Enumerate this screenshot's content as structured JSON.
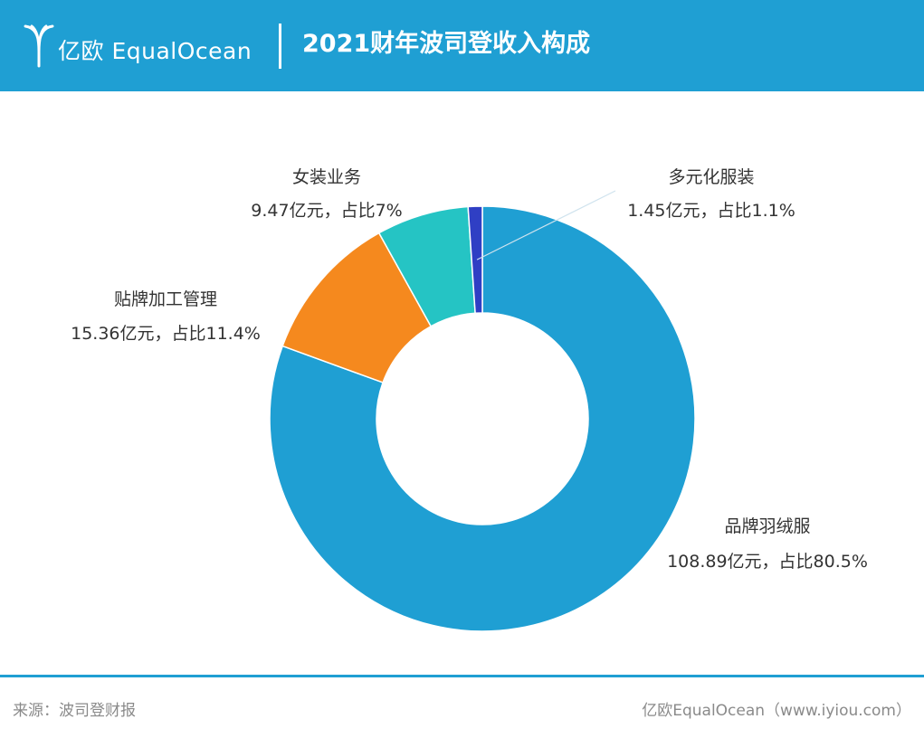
{
  "header": {
    "brand": "亿欧 EqualOcean",
    "title": "2021财年波司登收入构成",
    "accent_color": "#1f9fd3"
  },
  "chart_data": {
    "type": "pie",
    "title": "2021财年波司登收入构成",
    "unit": "亿元",
    "slices": [
      {
        "category": "品牌羽绒服",
        "value": 108.89,
        "percent": 80.5,
        "value_label": "108.89亿元，占比80.5%",
        "color": "#1f9fd3"
      },
      {
        "category": "贴牌加工管理",
        "value": 15.36,
        "percent": 11.4,
        "value_label": "15.36亿元，占比11.4%",
        "color": "#f5891e"
      },
      {
        "category": "女装业务",
        "value": 9.47,
        "percent": 7,
        "value_label": "9.47亿元，占比7%",
        "color": "#25c4c4"
      },
      {
        "category": "多元化服装",
        "value": 1.45,
        "percent": 1.1,
        "value_label": "1.45亿元，占比1.1%",
        "color": "#2f3fc4"
      }
    ]
  },
  "footer": {
    "source": "来源：波司登财报",
    "brand": "亿欧EqualOcean（www.iyiou.com）"
  }
}
